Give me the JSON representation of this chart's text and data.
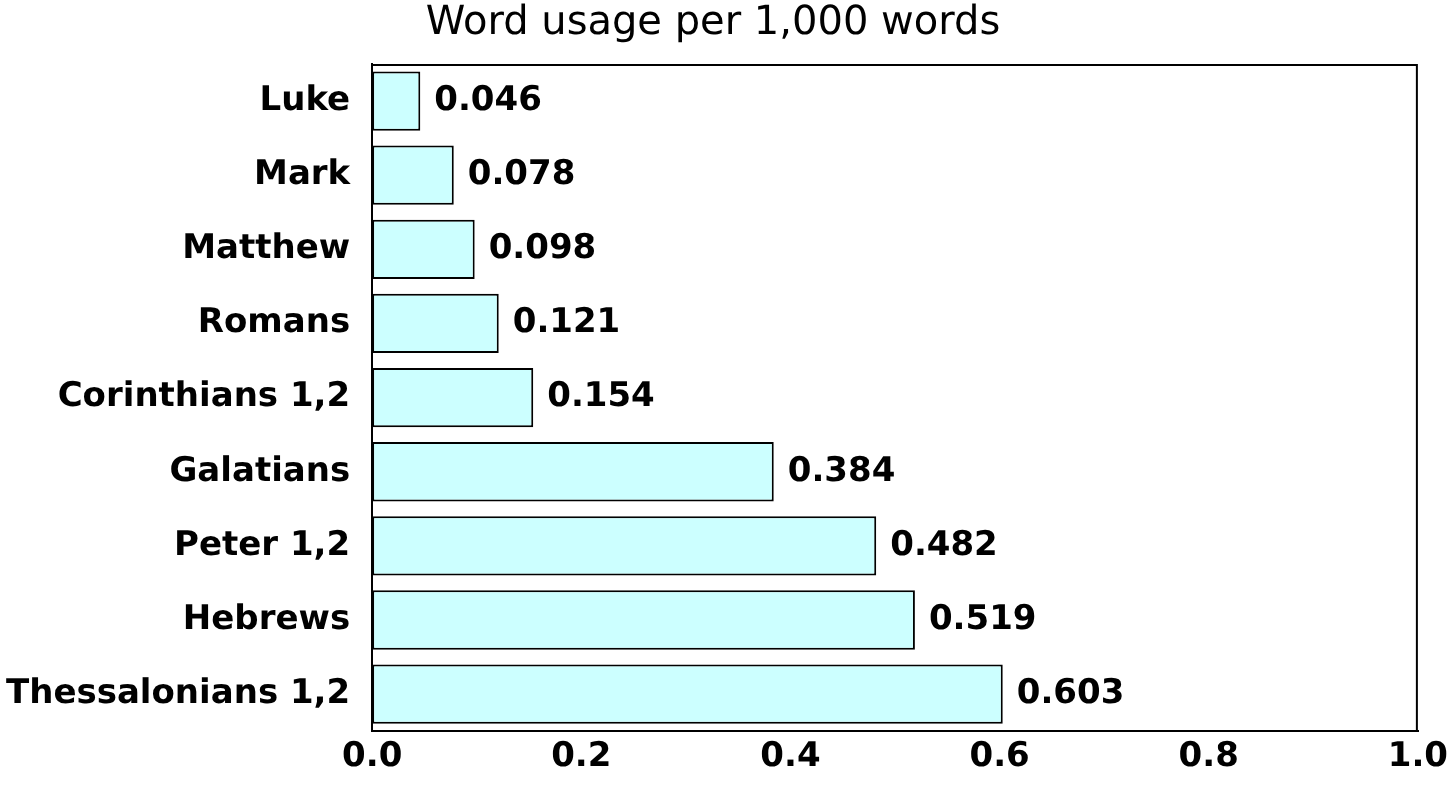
{
  "chart_data": {
    "type": "bar",
    "orientation": "horizontal",
    "title": "Word usage per 1,000 words",
    "categories": [
      "Luke",
      "Mark",
      "Matthew",
      "Romans",
      "Corinthians 1,2",
      "Galatians",
      "Peter 1,2",
      "Hebrews",
      "Thessalonians 1,2"
    ],
    "values": [
      0.046,
      0.078,
      0.098,
      0.121,
      0.154,
      0.384,
      0.482,
      0.519,
      0.603
    ],
    "color": "#ccffff",
    "xlim": [
      0,
      1
    ],
    "xticks": [
      {
        "value": 0,
        "label": "0.0"
      },
      0.2,
      0.4,
      0.6,
      0.8,
      {
        "value": 1,
        "label": "1.0"
      }
    ],
    "grid": false,
    "legend": false,
    "data_labels": true
  }
}
